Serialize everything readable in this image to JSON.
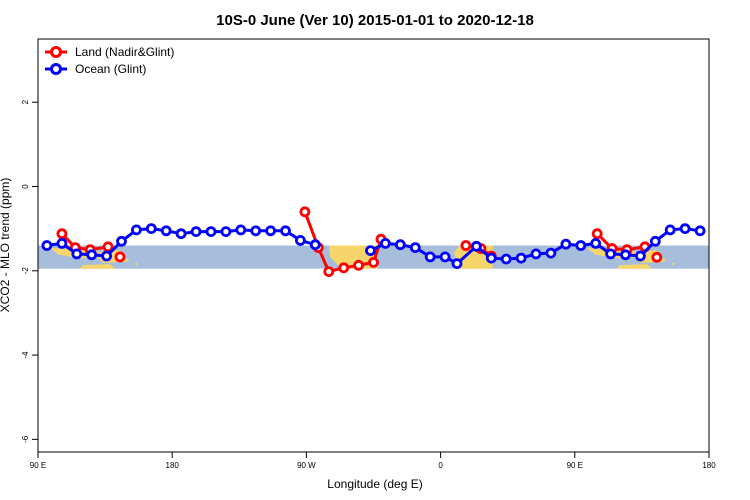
{
  "chart_data": {
    "type": "line",
    "title": "10S-0 June (Ver 10)   2015-01-01 to 2020-12-18",
    "xlabel": "Longitude (deg E)",
    "ylabel": "XCO2 - MLO trend (ppm)",
    "xlim": [
      90,
      540
    ],
    "ylim": [
      -6.3,
      3.5
    ],
    "x_ticks": [
      {
        "value": 90,
        "label": "90 E"
      },
      {
        "value": 180,
        "label": "180"
      },
      {
        "value": 270,
        "label": "90 W"
      },
      {
        "value": 360,
        "label": "0"
      },
      {
        "value": 450,
        "label": "90 E"
      },
      {
        "value": 540,
        "label": "180"
      }
    ],
    "y_ticks": [
      {
        "value": 2,
        "label": "2"
      },
      {
        "value": 0,
        "label": "0"
      },
      {
        "value": -2,
        "label": "-2"
      },
      {
        "value": -4,
        "label": "-4"
      },
      {
        "value": -6,
        "label": "-6"
      }
    ],
    "map_band": {
      "ymin": -1.95,
      "ymax": -1.4,
      "ocean_color": "#a6bddb",
      "land_color": "#f7d56b"
    },
    "legend_position": "top-left",
    "series": [
      {
        "name": "Land (Nadir&Glint)",
        "color": "#ff0000",
        "segments": [
          [
            [
              106,
              -1.12
            ],
            [
              115,
              -1.45
            ],
            [
              125,
              -1.5
            ],
            [
              137,
              -1.43
            ]
          ],
          [
            [
              145,
              -1.67
            ]
          ],
          [
            [
              269,
              -0.6
            ],
            [
              278,
              -1.45
            ],
            [
              285,
              -2.02
            ],
            [
              295,
              -1.93
            ],
            [
              305,
              -1.87
            ],
            [
              315,
              -1.8
            ],
            [
              320,
              -1.25
            ]
          ],
          [
            [
              377,
              -1.4
            ],
            [
              387,
              -1.47
            ],
            [
              394,
              -1.65
            ]
          ],
          [
            [
              465,
              -1.12
            ],
            [
              475,
              -1.47
            ],
            [
              485,
              -1.5
            ],
            [
              497,
              -1.43
            ]
          ],
          [
            [
              505,
              -1.68
            ]
          ]
        ]
      },
      {
        "name": "Ocean (Glint)",
        "color": "#0000ff",
        "segments": [
          [
            [
              96,
              -1.4
            ],
            [
              106,
              -1.35
            ],
            [
              116,
              -1.6
            ],
            [
              126,
              -1.62
            ],
            [
              136,
              -1.65
            ],
            [
              146,
              -1.3
            ],
            [
              156,
              -1.03
            ],
            [
              166,
              -1.0
            ],
            [
              176,
              -1.05
            ],
            [
              186,
              -1.12
            ],
            [
              196,
              -1.07
            ],
            [
              206,
              -1.07
            ],
            [
              216,
              -1.07
            ],
            [
              226,
              -1.03
            ],
            [
              236,
              -1.05
            ],
            [
              246,
              -1.05
            ],
            [
              256,
              -1.05
            ],
            [
              266,
              -1.28
            ],
            [
              276,
              -1.38
            ]
          ],
          [
            [
              313,
              -1.52
            ],
            [
              323,
              -1.35
            ],
            [
              333,
              -1.38
            ],
            [
              343,
              -1.45
            ],
            [
              353,
              -1.67
            ],
            [
              363,
              -1.67
            ],
            [
              371,
              -1.83
            ],
            [
              384,
              -1.42
            ],
            [
              394,
              -1.7
            ],
            [
              404,
              -1.72
            ],
            [
              414,
              -1.7
            ],
            [
              424,
              -1.6
            ],
            [
              434,
              -1.58
            ],
            [
              444,
              -1.37
            ],
            [
              454,
              -1.4
            ],
            [
              464,
              -1.35
            ],
            [
              474,
              -1.6
            ],
            [
              484,
              -1.62
            ],
            [
              494,
              -1.65
            ],
            [
              504,
              -1.3
            ],
            [
              514,
              -1.03
            ],
            [
              524,
              -1.0
            ],
            [
              534,
              -1.05
            ]
          ]
        ]
      }
    ]
  }
}
